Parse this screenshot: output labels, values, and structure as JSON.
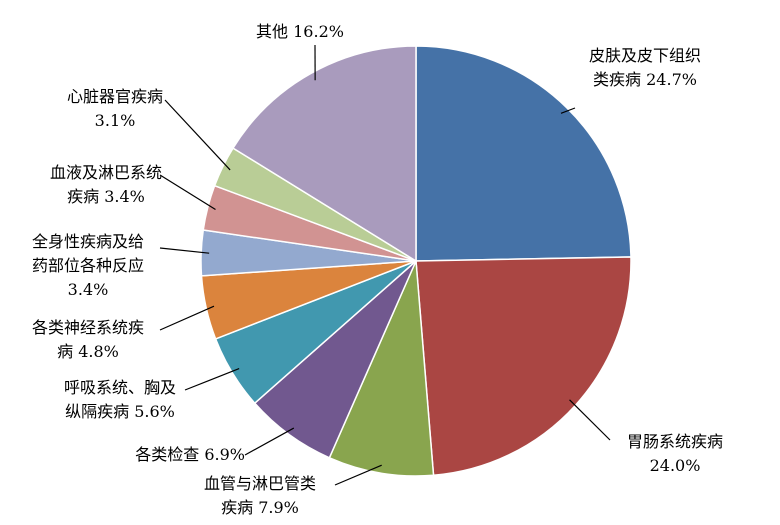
{
  "chart_data": {
    "type": "pie",
    "title": "",
    "start_angle_deg": 0,
    "direction": "clockwise",
    "slices": [
      {
        "name": "皮肤及皮下组织类疾病",
        "value": 24.7,
        "line1": "皮肤及皮下组织",
        "line2": "类疾病 24.7%",
        "color": "#4572A7"
      },
      {
        "name": "胃肠系统疾病",
        "value": 24.0,
        "line1": "胃肠系统疾病",
        "line2": "24.0%",
        "color": "#AA4643"
      },
      {
        "name": "血管与淋巴管类疾病",
        "value": 7.9,
        "line1": "血管与淋巴管类",
        "line2": "疾病 7.9%",
        "color": "#89A54E"
      },
      {
        "name": "各类检查",
        "value": 6.9,
        "line1": "各类检查 6.9%",
        "color": "#71588F"
      },
      {
        "name": "呼吸系统、胸及纵隔疾病",
        "value": 5.6,
        "line1": "呼吸系统、胸及",
        "line2": "纵隔疾病 5.6%",
        "color": "#4198AF"
      },
      {
        "name": "各类神经系统疾病",
        "value": 4.8,
        "line1": "各类神经系统疾",
        "line2": "病 4.8%",
        "color": "#DB843D"
      },
      {
        "name": "全身性疾病及给药部位各种反应",
        "value": 3.4,
        "line1": "全身性疾病及给",
        "line2": "药部位各种反应",
        "line3": "3.4%",
        "color": "#93A9CF"
      },
      {
        "name": "血液及淋巴系统疾病",
        "value": 3.4,
        "line1": "血液及淋巴系统",
        "line2": "疾病 3.4%",
        "color": "#D19392"
      },
      {
        "name": "心脏器官疾病",
        "value": 3.1,
        "line1": "心脏器官疾病",
        "line2": "3.1%",
        "color": "#B9CD96"
      },
      {
        "name": "其他",
        "value": 16.2,
        "line1": "其他 16.2%",
        "color": "#A99BBD"
      }
    ]
  }
}
